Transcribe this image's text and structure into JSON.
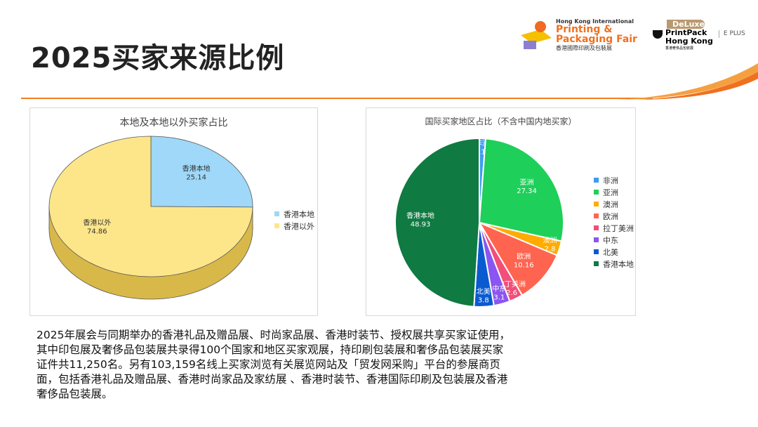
{
  "title": "2025买家来源比例",
  "logos": {
    "hkipf": {
      "line1": "Hong Kong International",
      "line2": "Printing &",
      "line3": "Packaging Fair",
      "line4": "香港國際印刷及包裝展"
    },
    "deluxe": {
      "badge": "DeLuxe",
      "line1": "PrintPack",
      "line2": "Hong Kong",
      "line3": "香港奢侈品包裝展",
      "eplus": "E PLUS"
    }
  },
  "colors": {
    "accent": "#f08020"
  },
  "chart_data": [
    {
      "type": "pie",
      "style": "3d",
      "title": "本地及本地以外买家占比",
      "legend": "right",
      "categories": [
        "香港本地",
        "香港以外"
      ],
      "values": [
        25.14,
        74.86
      ],
      "colors": [
        "#9fd8f8",
        "#fde68a"
      ]
    },
    {
      "type": "pie",
      "title": "国际买家地区占比（不含中国内地买家）",
      "legend": "right",
      "categories": [
        "非洲",
        "亚洲",
        "澳洲",
        "欧洲",
        "拉丁美洲",
        "中东",
        "北美",
        "香港本地"
      ],
      "values": [
        1.18,
        27.34,
        2.8,
        10.16,
        2.6,
        3.1,
        3.8,
        48.93
      ],
      "colors": [
        "#3c9cf0",
        "#1ecf5a",
        "#ffab00",
        "#ff6450",
        "#f24e78",
        "#8a55f0",
        "#0a5ad0",
        "#0f7a42"
      ]
    }
  ],
  "paragraph": "2025年展会与同期举办的香港礼品及赠品展、时尚家品展、香港时装节、授权展共享买家证使用，其中印包展及奢侈品包装展共录得100个国家和地区买家观展，持印刷包装展和奢侈品包装展买家证件共11,250名。另有103,159名线上买家浏览有关展览网站及「贸发网采购」平台的参展商页面，包括香港礼品及赠品展、香港时尚家品及家纺展 、香港时装节、香港国际印刷及包装展及香港奢侈品包装展。"
}
